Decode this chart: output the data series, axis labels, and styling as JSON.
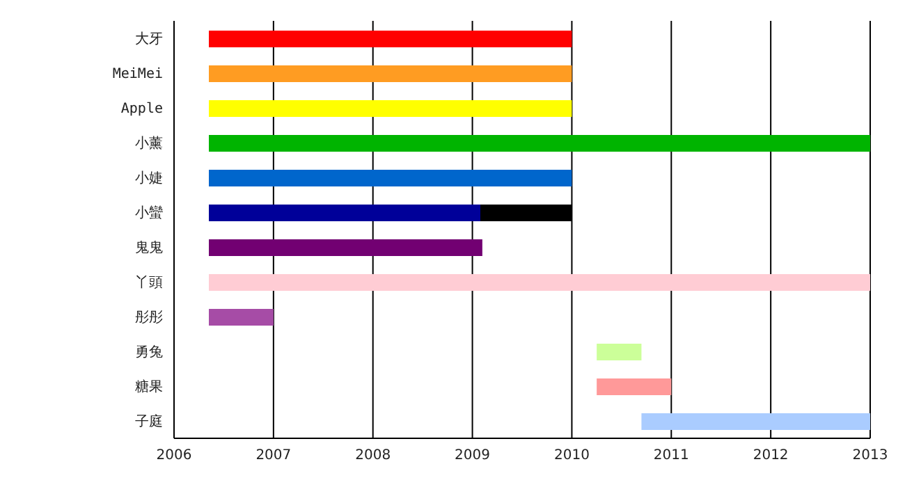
{
  "chart_data": {
    "type": "bar",
    "orientation": "horizontal",
    "categories": [
      "大牙",
      "MeiMei",
      "Apple",
      "小薰",
      "小婕",
      "小蠻",
      "鬼鬼",
      "丫頭",
      "彤彤",
      "勇兔",
      "糖果",
      "子庭"
    ],
    "series": [
      {
        "colors": [
          "#ff0000",
          "#ff9c22",
          "#ffff00",
          "#00b400",
          "#0066cc",
          "#000099",
          "#720072",
          "#ffccd4",
          "#a64ca6",
          "#ccff99",
          "#ff9999",
          "#aaccff"
        ],
        "base": [
          2006.35,
          2006.35,
          2006.35,
          2006.35,
          2006.35,
          2006.35,
          2006.35,
          2006.35,
          2006.35,
          2010.25,
          2010.25,
          2010.7
        ],
        "values": [
          3.65,
          3.65,
          3.65,
          6.65,
          3.65,
          2.73,
          2.75,
          6.65,
          0.65,
          0.45,
          0.75,
          2.3
        ]
      },
      {
        "color": "#000000",
        "base": [
          null,
          null,
          null,
          null,
          null,
          2009.08,
          null,
          null,
          null,
          null,
          null,
          null
        ],
        "values": [
          null,
          null,
          null,
          null,
          null,
          0.92,
          null,
          null,
          null,
          null,
          null,
          null
        ]
      }
    ],
    "xlim": [
      2006,
      2013
    ],
    "xticks": [
      2006,
      2007,
      2008,
      2009,
      2010,
      2011,
      2012,
      2013
    ],
    "grid": "x"
  }
}
